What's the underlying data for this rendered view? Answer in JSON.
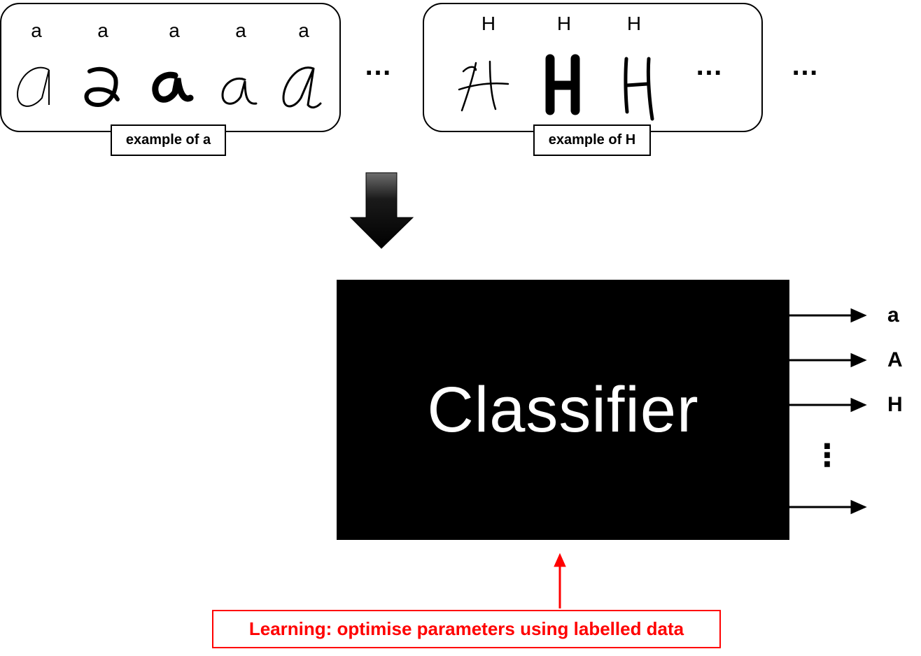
{
  "group_a": {
    "labels": [
      "a",
      "a",
      "a",
      "a",
      "a"
    ],
    "caption": "example of a"
  },
  "group_h": {
    "labels": [
      "H",
      "H",
      "H"
    ],
    "caption": "example of H"
  },
  "ellipsis": "…",
  "classifier": {
    "label": "Classifier"
  },
  "outputs": [
    {
      "label": "a"
    },
    {
      "label": "A"
    },
    {
      "label": "H"
    },
    {
      "label": ""
    }
  ],
  "outputs_more": "⋮",
  "learning": {
    "label": "Learning: optimise parameters using labelled data"
  },
  "colors": {
    "accent": "#ff0000",
    "box": "#000000"
  }
}
